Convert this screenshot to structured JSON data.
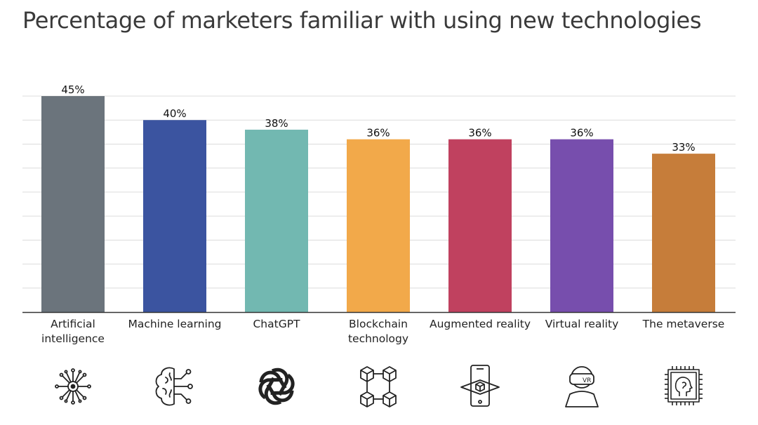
{
  "title": "Percentage of marketers familiar with using new technologies",
  "chart_data": {
    "type": "bar",
    "title": "Percentage of marketers familiar with using new technologies",
    "categories": [
      "Artificial intelligence",
      "Machine learning",
      "ChatGPT",
      "Blockchain technology",
      "Augmented reality",
      "Virtual reality",
      "The metaverse"
    ],
    "display_labels": [
      [
        "Artificial",
        "intelligence"
      ],
      [
        "Machine learning"
      ],
      [
        "ChatGPT"
      ],
      [
        "Blockchain",
        "technology"
      ],
      [
        "Augmented reality"
      ],
      [
        "Virtual reality"
      ],
      [
        "The metaverse"
      ]
    ],
    "values": [
      45,
      40,
      38,
      36,
      36,
      36,
      33
    ],
    "value_labels": [
      "45%",
      "40%",
      "38%",
      "36%",
      "36%",
      "36%",
      "33%"
    ],
    "colors": [
      "#6b747c",
      "#3b54a0",
      "#72b8b1",
      "#f2a94a",
      "#c0415f",
      "#774ead",
      "#c67d3a"
    ],
    "ylim": [
      0,
      45
    ],
    "grid": true,
    "legend": "none",
    "xlabel": "",
    "ylabel": ""
  },
  "icons": [
    "ai-circuit-icon",
    "brain-network-icon",
    "chatgpt-logo-icon",
    "blockchain-cubes-icon",
    "augmented-reality-phone-icon",
    "vr-headset-icon",
    "metaverse-chip-head-icon"
  ]
}
